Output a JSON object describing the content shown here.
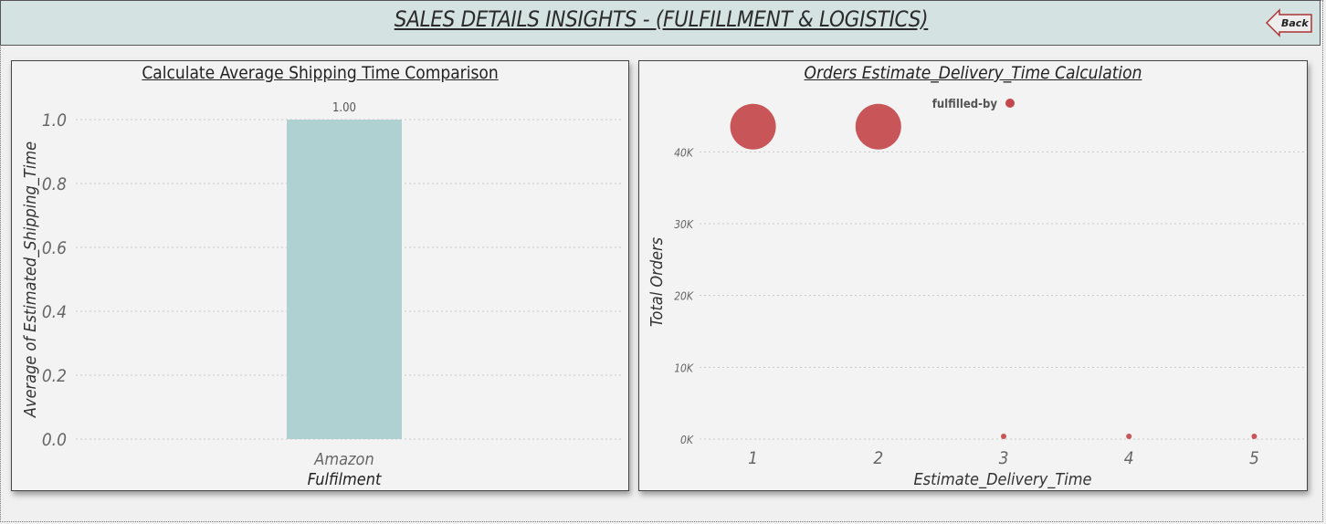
{
  "header": {
    "title": "SALES DETAILS INSIGHTS - (FULFILLMENT & LOGISTICS)",
    "back_label": "Back"
  },
  "colors": {
    "header_bg": "#d4e3e2",
    "bar": "#afd1d2",
    "bubble": "#c4484b",
    "grid": "#c8c8c8"
  },
  "left_chart": {
    "title": "Calculate Average Shipping Time Comparison"
  },
  "right_chart": {
    "title": "Orders Estimate_Delivery_Time Calculation",
    "legend_title": "fulfilled-by"
  },
  "chart_data": [
    {
      "type": "bar",
      "title": "Calculate Average Shipping Time Comparison",
      "categories": [
        "Amazon Fulfilment"
      ],
      "category_lines": [
        [
          "Amazon",
          "Fulfilment"
        ]
      ],
      "values": [
        1.0
      ],
      "data_labels": [
        "1.00"
      ],
      "xlabel": "",
      "ylabel": "Average of Estimated_Shipping_Time",
      "ylim": [
        0,
        1.0
      ],
      "yticks": [
        0.0,
        0.2,
        0.4,
        0.6,
        0.8,
        1.0
      ],
      "ytick_labels": [
        "0.0",
        "0.2",
        "0.4",
        "0.6",
        "0.8",
        "1.0"
      ],
      "grid": true
    },
    {
      "type": "scatter",
      "title": "Orders Estimate_Delivery_Time Calculation",
      "legend_title": "fulfilled-by",
      "legend_placement": "top-center",
      "series": [
        {
          "name": "",
          "x": [
            1,
            2,
            3,
            4,
            5
          ],
          "y": [
            43000,
            43000,
            200,
            200,
            200
          ],
          "bubble": [
            "large",
            "large",
            "small",
            "small",
            "small"
          ]
        }
      ],
      "xlabel": "Estimate_Delivery_Time",
      "ylabel": "Total Orders",
      "xticks": [
        1,
        2,
        3,
        4,
        5
      ],
      "xtick_labels": [
        "1",
        "2",
        "3",
        "4",
        "5"
      ],
      "ylim": [
        0,
        45000
      ],
      "yticks": [
        0,
        10000,
        20000,
        30000,
        40000
      ],
      "ytick_labels": [
        "0K",
        "10K",
        "20K",
        "30K",
        "40K"
      ],
      "grid": true
    }
  ]
}
